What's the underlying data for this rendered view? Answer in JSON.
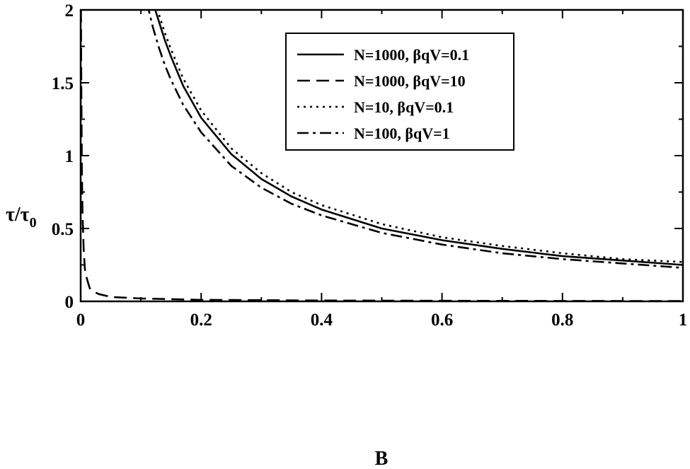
{
  "chart_data": {
    "type": "line",
    "xlabel": "B",
    "ylabel_main": "τ/τ",
    "ylabel_sub": "0",
    "xlim": [
      0,
      1
    ],
    "ylim": [
      0,
      2
    ],
    "x_ticks": [
      {
        "value": 0,
        "label": "0"
      },
      {
        "value": 0.2,
        "label": "0.2"
      },
      {
        "value": 0.4,
        "label": "0.4"
      },
      {
        "value": 0.6,
        "label": "0.6"
      },
      {
        "value": 0.8,
        "label": "0.8"
      },
      {
        "value": 1,
        "label": "1"
      }
    ],
    "y_ticks": [
      {
        "value": 0,
        "label": "0"
      },
      {
        "value": 0.5,
        "label": "0.5"
      },
      {
        "value": 1,
        "label": "1"
      },
      {
        "value": 1.5,
        "label": "1.5"
      },
      {
        "value": 2,
        "label": "2"
      }
    ],
    "grid": false,
    "legend_position": "top-right",
    "series": [
      {
        "name": "N=1000, βqV=0.1",
        "style": "solid",
        "x": [
          0.12,
          0.13,
          0.14,
          0.15,
          0.17,
          0.2,
          0.25,
          0.3,
          0.35,
          0.4,
          0.5,
          0.6,
          0.7,
          0.8,
          0.9,
          1.0
        ],
        "y": [
          2.05,
          1.92,
          1.79,
          1.68,
          1.48,
          1.26,
          1.01,
          0.84,
          0.72,
          0.63,
          0.5,
          0.42,
          0.36,
          0.31,
          0.28,
          0.25
        ]
      },
      {
        "name": "N=1000, βqV=10",
        "style": "dashed",
        "x": [
          0.0005,
          0.001,
          0.002,
          0.003,
          0.005,
          0.007,
          0.01,
          0.015,
          0.02,
          0.03,
          0.05,
          0.1,
          0.2,
          0.4,
          0.6,
          0.8,
          1.0
        ],
        "y": [
          2.0,
          1.5,
          0.9,
          0.6,
          0.35,
          0.22,
          0.16,
          0.09,
          0.07,
          0.05,
          0.03,
          0.02,
          0.01,
          0.006,
          0.004,
          0.003,
          0.002
        ]
      },
      {
        "name": "N=10, βqV=0.1",
        "style": "dotted",
        "x": [
          0.125,
          0.13,
          0.14,
          0.15,
          0.17,
          0.2,
          0.25,
          0.3,
          0.35,
          0.4,
          0.5,
          0.6,
          0.7,
          0.8,
          0.9,
          1.0
        ],
        "y": [
          2.05,
          1.97,
          1.84,
          1.73,
          1.53,
          1.31,
          1.05,
          0.88,
          0.75,
          0.66,
          0.53,
          0.44,
          0.38,
          0.33,
          0.29,
          0.27
        ]
      },
      {
        "name": "N=100, βqV=1",
        "style": "dashdot",
        "x": [
          0.11,
          0.12,
          0.13,
          0.14,
          0.15,
          0.17,
          0.2,
          0.25,
          0.3,
          0.35,
          0.4,
          0.5,
          0.6,
          0.7,
          0.8,
          0.9,
          1.0
        ],
        "y": [
          2.05,
          1.88,
          1.74,
          1.62,
          1.52,
          1.35,
          1.16,
          0.93,
          0.78,
          0.67,
          0.59,
          0.47,
          0.39,
          0.33,
          0.29,
          0.26,
          0.23
        ]
      }
    ]
  }
}
